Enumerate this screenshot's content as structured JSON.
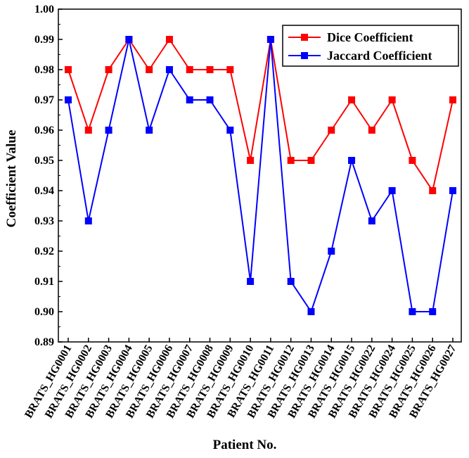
{
  "chart_data": {
    "type": "line",
    "title": "",
    "xlabel": "Patient No.",
    "ylabel": "Coefficient Value",
    "ylim": [
      0.89,
      1.0
    ],
    "yticks": [
      "0.89",
      "0.90",
      "0.91",
      "0.92",
      "0.93",
      "0.94",
      "0.95",
      "0.96",
      "0.97",
      "0.98",
      "0.99",
      "1.00"
    ],
    "grid": false,
    "legend_position": "top-right",
    "categories": [
      "BRATS_HG0001",
      "BRATS_HG0002",
      "BRATS_HG0003",
      "BRATS_HG0004",
      "BRATS_HG0005",
      "BRATS_HG0006",
      "BRATS_HG0007",
      "BRATS_HG0008",
      "BRATS_HG0009",
      "BRATS_HG0010",
      "BRATS_HG0011",
      "BRATS_HG0012",
      "BRATS_HG0013",
      "BRATS_HG0014",
      "BRATS_HG0015",
      "BRATS_HG0022",
      "BRATS_HG0024",
      "BRATS_HG0025",
      "BRATS_HG0026",
      "BRATS_HG0027"
    ],
    "series": [
      {
        "name": "Dice Coefficient",
        "color": "#ff0000",
        "values": [
          0.98,
          0.96,
          0.98,
          0.99,
          0.98,
          0.99,
          0.98,
          0.98,
          0.98,
          0.95,
          0.99,
          0.95,
          0.95,
          0.96,
          0.97,
          0.96,
          0.97,
          0.95,
          0.94,
          0.97
        ]
      },
      {
        "name": "Jaccard Coefficient",
        "color": "#0000ff",
        "values": [
          0.97,
          0.93,
          0.96,
          0.99,
          0.96,
          0.98,
          0.97,
          0.97,
          0.96,
          0.91,
          0.99,
          0.91,
          0.9,
          0.92,
          0.95,
          0.93,
          0.94,
          0.9,
          0.9,
          0.94
        ]
      }
    ]
  }
}
